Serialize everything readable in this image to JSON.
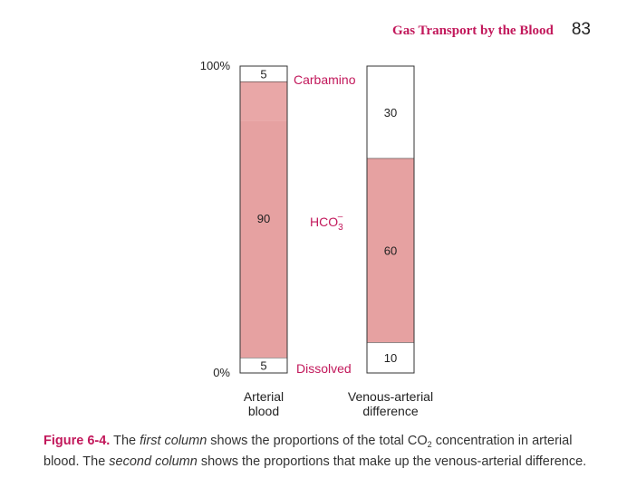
{
  "header": {
    "running_title": "Gas Transport by the Blood",
    "page_number": "83"
  },
  "chart_data": {
    "type": "bar",
    "stacked": true,
    "categories": [
      "Arterial blood",
      "Venous-arterial difference"
    ],
    "category_label_lines": [
      [
        "Arterial",
        "blood"
      ],
      [
        "Venous-arterial",
        "difference"
      ]
    ],
    "ylim": [
      0,
      100
    ],
    "y_tick_labels": [
      "100%",
      "0%"
    ],
    "grid": false,
    "segments": [
      {
        "name": "Dissolved",
        "values": [
          5,
          10
        ],
        "value_labels": [
          "5",
          "10"
        ]
      },
      {
        "name": "HCO3-",
        "display_name": "HCO3",
        "display_sup": "–",
        "display_sub": "3",
        "values": [
          90,
          60
        ],
        "value_labels": [
          "90",
          "60"
        ]
      },
      {
        "name": "Carbamino",
        "values": [
          5,
          30
        ],
        "value_labels": [
          "5",
          "30"
        ]
      }
    ],
    "colors": {
      "bar_stroke": "#333333",
      "white_fill": "#ffffff",
      "hco3_arterial_upper": "#e9a7a7",
      "hco3_fill": "#e6a1a1",
      "label_color": "#c2185b",
      "text_color": "#222222"
    }
  },
  "caption": {
    "label": "Figure 6-4.",
    "parts": [
      {
        "t": "The ",
        "s": "normal"
      },
      {
        "t": "first column",
        "s": "italic"
      },
      {
        "t": " shows the proportions of the total CO",
        "s": "normal"
      },
      {
        "t": "2",
        "s": "sub"
      },
      {
        "t": " concentration in arterial blood. The ",
        "s": "normal"
      },
      {
        "t": "second column",
        "s": "italic"
      },
      {
        "t": " shows the proportions that make up the venous-arterial difference.",
        "s": "normal"
      }
    ]
  }
}
